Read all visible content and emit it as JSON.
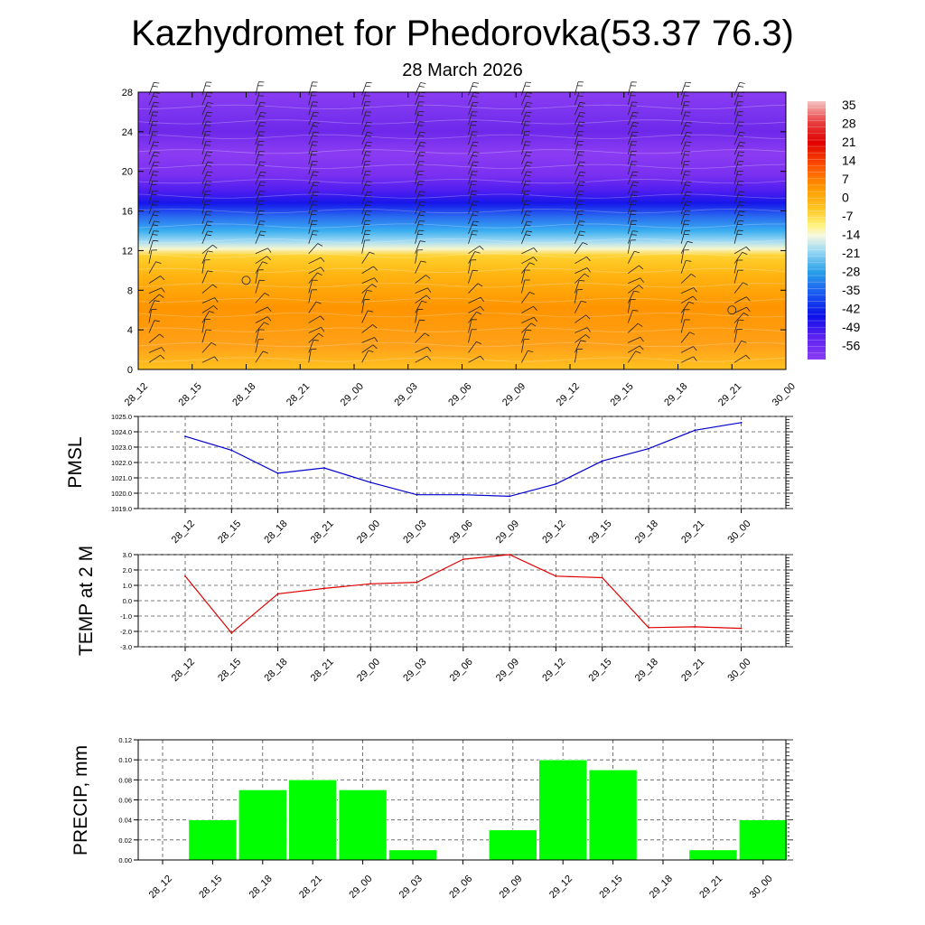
{
  "title": "Kazhydromet for Phedorovka(53.37 76.3)",
  "subtitle": "28 March 2026",
  "colors": {
    "pmsl_line": "#0000cc",
    "temp_line": "#e00000",
    "precip_bar": "#00ff00",
    "grid": "#000000"
  },
  "chart_data": [
    {
      "id": "cross_section",
      "type": "heatmap",
      "title": "",
      "x": [
        "28_12",
        "28_15",
        "28_18",
        "28_21",
        "29_00",
        "29_03",
        "29_06",
        "29_09",
        "29_12",
        "29_15",
        "29_18",
        "29_21",
        "30_00"
      ],
      "yticks": [
        0,
        4,
        8,
        12,
        16,
        20,
        24,
        28
      ],
      "ylim": [
        0,
        28
      ],
      "colorbar": {
        "labels": [
          "35",
          "28",
          "21",
          "14",
          "7",
          "0",
          "-7",
          "-14",
          "-21",
          "-28",
          "-35",
          "-42",
          "-49",
          "-56"
        ],
        "range": [
          -63,
          38
        ]
      },
      "layers": [
        {
          "bottom": 0,
          "top": 3,
          "value": 4
        },
        {
          "bottom": 3,
          "top": 9,
          "value": 8
        },
        {
          "bottom": 9,
          "top": 12,
          "value": 1
        },
        {
          "bottom": 12,
          "top": 14,
          "value": -14
        },
        {
          "bottom": 14,
          "top": 16,
          "value": -30
        },
        {
          "bottom": 16,
          "top": 18,
          "value": -50
        },
        {
          "bottom": 18,
          "top": 20,
          "value": -58
        },
        {
          "bottom": 20,
          "top": 22,
          "value": -62
        },
        {
          "bottom": 22,
          "top": 26,
          "value": -60
        },
        {
          "bottom": 26,
          "top": 28,
          "value": -62
        }
      ],
      "calm_markers": [
        {
          "x": "28_18",
          "y": 9
        },
        {
          "x": "29_21",
          "y": 6
        }
      ]
    },
    {
      "id": "pmsl",
      "type": "line",
      "ylabel": "PMSL",
      "x": [
        "28_12",
        "28_15",
        "28_18",
        "28_21",
        "29_00",
        "29_03",
        "29_06",
        "29_09",
        "29_12",
        "29_15",
        "29_18",
        "29_21",
        "30_00"
      ],
      "values": [
        1023.7,
        1022.8,
        1021.3,
        1021.65,
        1020.7,
        1019.9,
        1019.9,
        1019.8,
        1020.6,
        1022.1,
        1022.9,
        1024.1,
        1024.6
      ],
      "ylim": [
        1019.0,
        1025.0
      ],
      "yticks": [
        "1019.0",
        "1020.0",
        "1021.0",
        "1022.0",
        "1023.0",
        "1024.0",
        "1025.0"
      ]
    },
    {
      "id": "temp",
      "type": "line",
      "ylabel": "TEMP at 2 M",
      "x": [
        "28_12",
        "28_15",
        "28_18",
        "28_21",
        "29_00",
        "29_03",
        "29_06",
        "29_09",
        "29_12",
        "29_15",
        "29_18",
        "29_21",
        "30_00"
      ],
      "values": [
        1.6,
        -2.1,
        0.45,
        0.8,
        1.1,
        1.2,
        2.7,
        3.0,
        1.6,
        1.5,
        -1.75,
        -1.7,
        -1.8
      ],
      "ylim": [
        -3.0,
        3.0
      ],
      "yticks": [
        "-3.0",
        "-2.0",
        "-1.0",
        "0.0",
        "1.0",
        "2.0",
        "3.0"
      ]
    },
    {
      "id": "precip",
      "type": "bar",
      "ylabel": "PRECIP, mm",
      "categories": [
        "28_12",
        "28_15",
        "28_18",
        "28_21",
        "29_00",
        "29_03",
        "29_06",
        "29_09",
        "29_12",
        "29_15",
        "29_18",
        "29_21",
        "30_00"
      ],
      "values": [
        0,
        0.04,
        0.07,
        0.08,
        0.07,
        0.01,
        0,
        0.03,
        0.1,
        0.09,
        0,
        0.01,
        0.04
      ],
      "ylim": [
        0,
        0.12
      ],
      "yticks": [
        "0.00",
        "0.02",
        "0.04",
        "0.06",
        "0.08",
        "0.10",
        "0.12"
      ]
    }
  ]
}
